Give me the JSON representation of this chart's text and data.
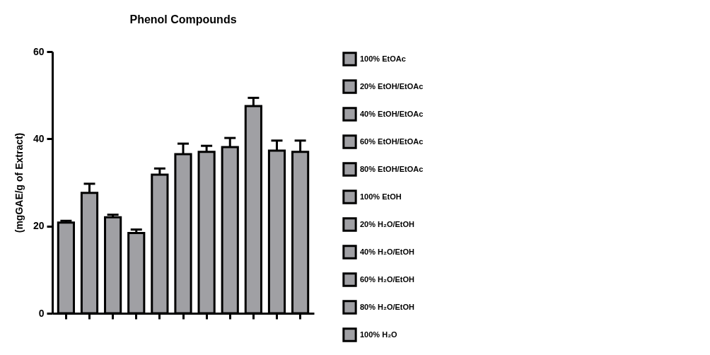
{
  "chart_data": {
    "type": "bar",
    "title": "Phenol Compounds",
    "ylabel": "(mgGAE/g of Extract)",
    "categories": [
      null,
      null,
      null,
      null,
      null,
      null,
      null,
      null,
      null,
      null,
      null
    ],
    "series": [
      {
        "name": "100% EtOAc",
        "color": "#a0a0a4",
        "values": [
          20.8,
          null,
          null,
          null,
          null,
          null,
          null,
          null,
          null,
          null,
          null
        ],
        "errors": [
          0.4,
          null,
          null,
          null,
          null,
          null,
          null,
          null,
          null,
          null,
          null
        ]
      },
      {
        "name": "20% EtOH/EtOAc",
        "color": "#a0a0a4",
        "values": [
          null,
          27.6,
          null,
          null,
          null,
          null,
          null,
          null,
          null,
          null,
          null
        ],
        "errors": [
          null,
          2.1,
          null,
          null,
          null,
          null,
          null,
          null,
          null,
          null,
          null
        ]
      },
      {
        "name": "40% EtOH/EtOAc",
        "color": "#a0a0a4",
        "values": [
          null,
          null,
          22.0,
          null,
          null,
          null,
          null,
          null,
          null,
          null,
          null
        ],
        "errors": [
          null,
          null,
          0.6,
          null,
          null,
          null,
          null,
          null,
          null,
          null,
          null
        ]
      },
      {
        "name": "60% EtOH/EtOAc",
        "color": "#a0a0a4",
        "values": [
          null,
          null,
          null,
          18.4,
          null,
          null,
          null,
          null,
          null,
          null,
          null
        ],
        "errors": [
          null,
          null,
          null,
          0.8,
          null,
          null,
          null,
          null,
          null,
          null,
          null
        ]
      },
      {
        "name": "80% EtOH/EtOAc",
        "color": "#a0a0a4",
        "values": [
          null,
          null,
          null,
          null,
          31.8,
          null,
          null,
          null,
          null,
          null,
          null
        ],
        "errors": [
          null,
          null,
          null,
          null,
          1.4,
          null,
          null,
          null,
          null,
          null,
          null
        ]
      },
      {
        "name": "100% EtOH",
        "color": "#a0a0a4",
        "values": [
          null,
          null,
          null,
          null,
          null,
          36.5,
          null,
          null,
          null,
          null,
          null
        ],
        "errors": [
          null,
          null,
          null,
          null,
          null,
          2.4,
          null,
          null,
          null,
          null,
          null
        ]
      },
      {
        "name": "20% H₂O/EtOH",
        "color": "#a0a0a4",
        "values": [
          null,
          null,
          null,
          null,
          null,
          null,
          37.0,
          null,
          null,
          null,
          null
        ],
        "errors": [
          null,
          null,
          null,
          null,
          null,
          null,
          1.4,
          null,
          null,
          null,
          null
        ]
      },
      {
        "name": "40% H₂O/EtOH",
        "color": "#a0a0a4",
        "values": [
          null,
          null,
          null,
          null,
          null,
          null,
          null,
          38.1,
          null,
          null,
          null
        ],
        "errors": [
          null,
          null,
          null,
          null,
          null,
          null,
          null,
          2.1,
          null,
          null,
          null
        ]
      },
      {
        "name": "60% H₂O/EtOH",
        "color": "#a0a0a4",
        "values": [
          null,
          null,
          null,
          null,
          null,
          null,
          null,
          null,
          47.5,
          null,
          null
        ],
        "errors": [
          null,
          null,
          null,
          null,
          null,
          null,
          null,
          null,
          1.9,
          null,
          null
        ]
      },
      {
        "name": "80% H₂O/EtOH",
        "color": "#a0a0a4",
        "values": [
          null,
          null,
          null,
          null,
          null,
          null,
          null,
          null,
          null,
          37.3,
          null
        ],
        "errors": [
          null,
          null,
          null,
          null,
          null,
          null,
          null,
          null,
          null,
          2.3,
          null
        ]
      },
      {
        "name": "100% H₂O",
        "color": "#a0a0a4",
        "values": [
          null,
          null,
          null,
          null,
          null,
          null,
          null,
          null,
          null,
          null,
          37.0
        ],
        "errors": [
          null,
          null,
          null,
          null,
          null,
          null,
          null,
          null,
          null,
          null,
          2.6
        ]
      }
    ],
    "ylim": [
      0,
      60
    ],
    "yticks": [
      0,
      20,
      40,
      60
    ],
    "grid": false,
    "legend": "right",
    "tick_labels": "y"
  }
}
